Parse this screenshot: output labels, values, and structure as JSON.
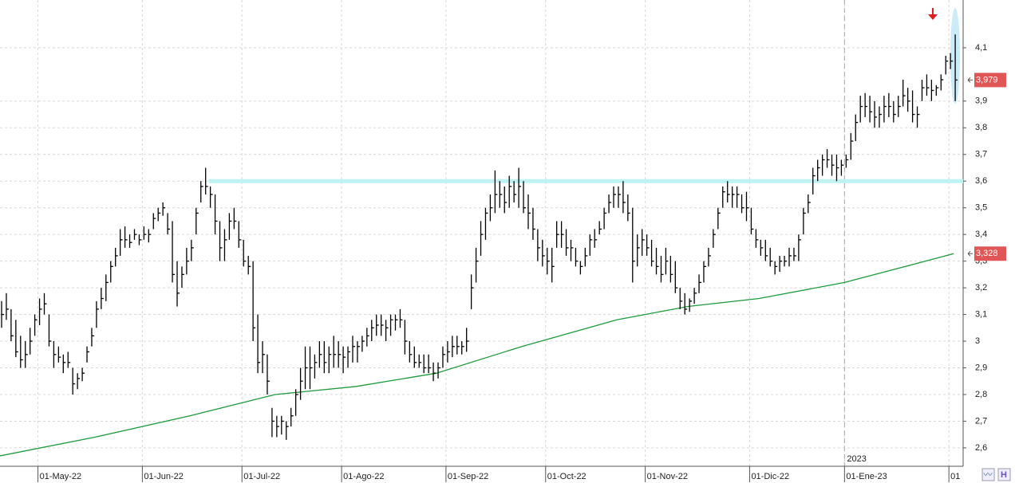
{
  "chart_data": {
    "type": "ohlc",
    "xlim": [
      0,
      203
    ],
    "ylim": [
      2.531,
      4.279
    ],
    "xticks": [
      {
        "value": 8,
        "label": "01-May-22"
      },
      {
        "value": 30,
        "label": "01-Jun-22"
      },
      {
        "value": 51,
        "label": "01-Jul-22"
      },
      {
        "value": 72,
        "label": "01-Ago-22"
      },
      {
        "value": 94,
        "label": "01-Sep-22"
      },
      {
        "value": 115,
        "label": "01-Oct-22"
      },
      {
        "value": 136,
        "label": "01-Nov-22"
      },
      {
        "value": 158,
        "label": "01-Dic-22"
      },
      {
        "value": 178,
        "label": "01-Ene-23"
      },
      {
        "value": 200,
        "label": "01"
      }
    ],
    "yticks": [
      {
        "value": 2.6,
        "label": "2,6"
      },
      {
        "value": 2.7,
        "label": "2,7"
      },
      {
        "value": 2.8,
        "label": "2,8"
      },
      {
        "value": 2.9,
        "label": "2,9"
      },
      3,
      {
        "value": 3.1,
        "label": "3,1"
      },
      {
        "value": 3.2,
        "label": "3,2"
      },
      {
        "value": 3.3,
        "label": "3,3"
      },
      {
        "value": 3.4,
        "label": "3,4"
      },
      {
        "value": 3.5,
        "label": "3,5"
      },
      {
        "value": 3.6,
        "label": "3,6"
      },
      {
        "value": 3.7,
        "label": "3,7"
      },
      {
        "value": 3.8,
        "label": "3,8"
      },
      {
        "value": 3.9,
        "label": "3,9"
      },
      {
        "value": 4.1,
        "label": "4,1"
      }
    ],
    "grid": true,
    "year_marker": {
      "x": 178,
      "label": "2023"
    },
    "bar_color": "#000000",
    "high": [
      3.15,
      3.18,
      3.12,
      3.08,
      3.02,
      3.0,
      3.05,
      3.1,
      3.16,
      3.18,
      3.1,
      3.0,
      2.98,
      2.95,
      2.96,
      2.9,
      2.88,
      2.9,
      2.98,
      3.05,
      3.15,
      3.2,
      3.25,
      3.3,
      3.35,
      3.42,
      3.43,
      3.4,
      3.42,
      3.4,
      3.43,
      3.42,
      3.48,
      3.5,
      3.52,
      3.48,
      3.45,
      3.3,
      3.28,
      3.35,
      3.38,
      3.5,
      3.6,
      3.65,
      3.58,
      3.55,
      3.45,
      3.42,
      3.48,
      3.5,
      3.45,
      3.38,
      3.32,
      3.3,
      3.1,
      3.0,
      2.95,
      2.75,
      2.72,
      2.72,
      2.7,
      2.75,
      2.82,
      2.9,
      2.98,
      2.98,
      2.95,
      3.0,
      3.0,
      2.98,
      3.02,
      3.0,
      2.98,
      2.98,
      3.02,
      3.0,
      3.02,
      3.05,
      3.08,
      3.1,
      3.1,
      3.08,
      3.1,
      3.1,
      3.12,
      3.08,
      3.0,
      2.98,
      2.95,
      2.95,
      2.95,
      2.92,
      2.92,
      2.98,
      3.0,
      3.02,
      3.02,
      3.0,
      3.05,
      3.25,
      3.35,
      3.45,
      3.5,
      3.55,
      3.64,
      3.6,
      3.58,
      3.62,
      3.6,
      3.65,
      3.6,
      3.55,
      3.5,
      3.42,
      3.38,
      3.35,
      3.35,
      3.45,
      3.45,
      3.42,
      3.38,
      3.35,
      3.3,
      3.35,
      3.4,
      3.42,
      3.45,
      3.5,
      3.55,
      3.58,
      3.58,
      3.6,
      3.55,
      3.5,
      3.4,
      3.42,
      3.4,
      3.38,
      3.35,
      3.32,
      3.35,
      3.32,
      3.3,
      3.2,
      3.18,
      3.16,
      3.2,
      3.25,
      3.3,
      3.35,
      3.42,
      3.5,
      3.58,
      3.6,
      3.58,
      3.58,
      3.55,
      3.56,
      3.5,
      3.42,
      3.38,
      3.38,
      3.35,
      3.3,
      3.32,
      3.32,
      3.35,
      3.35,
      3.4,
      3.5,
      3.55,
      3.65,
      3.68,
      3.7,
      3.72,
      3.7,
      3.7,
      3.68,
      3.7,
      3.78,
      3.85,
      3.92,
      3.93,
      3.92,
      3.9,
      3.88,
      3.92,
      3.93,
      3.9,
      3.92,
      3.98,
      3.95,
      3.94,
      3.88,
      3.98,
      4.0,
      3.98,
      3.96,
      4.0,
      4.07,
      4.08,
      4.15
    ],
    "low": [
      3.05,
      3.08,
      3.0,
      2.94,
      2.9,
      2.9,
      2.95,
      3.02,
      3.06,
      3.1,
      2.98,
      2.9,
      2.92,
      2.88,
      2.9,
      2.8,
      2.82,
      2.85,
      2.92,
      2.98,
      3.05,
      3.12,
      3.15,
      3.22,
      3.28,
      3.32,
      3.35,
      3.35,
      3.38,
      3.36,
      3.38,
      3.37,
      3.42,
      3.45,
      3.47,
      3.4,
      3.22,
      3.13,
      3.2,
      3.25,
      3.3,
      3.4,
      3.52,
      3.55,
      3.5,
      3.4,
      3.3,
      3.3,
      3.38,
      3.42,
      3.35,
      3.28,
      3.25,
      3.0,
      2.88,
      2.88,
      2.8,
      2.64,
      2.64,
      2.65,
      2.63,
      2.68,
      2.72,
      2.78,
      2.82,
      2.82,
      2.86,
      2.9,
      2.88,
      2.88,
      2.9,
      2.9,
      2.88,
      2.9,
      2.92,
      2.92,
      2.96,
      2.98,
      3.0,
      3.02,
      3.02,
      3.0,
      3.02,
      3.04,
      3.05,
      2.95,
      2.92,
      2.9,
      2.9,
      2.88,
      2.88,
      2.85,
      2.86,
      2.9,
      2.92,
      2.94,
      2.95,
      2.95,
      2.96,
      3.12,
      3.22,
      3.32,
      3.38,
      3.45,
      3.48,
      3.5,
      3.48,
      3.5,
      3.52,
      3.5,
      3.48,
      3.42,
      3.38,
      3.3,
      3.28,
      3.25,
      3.22,
      3.35,
      3.35,
      3.32,
      3.3,
      3.28,
      3.25,
      3.28,
      3.32,
      3.35,
      3.4,
      3.42,
      3.48,
      3.5,
      3.5,
      3.48,
      3.45,
      3.22,
      3.28,
      3.32,
      3.32,
      3.28,
      3.25,
      3.22,
      3.25,
      3.22,
      3.18,
      3.12,
      3.1,
      3.11,
      3.14,
      3.18,
      3.22,
      3.28,
      3.35,
      3.42,
      3.5,
      3.52,
      3.5,
      3.5,
      3.48,
      3.45,
      3.4,
      3.35,
      3.32,
      3.3,
      3.28,
      3.25,
      3.26,
      3.28,
      3.28,
      3.3,
      3.3,
      3.4,
      3.48,
      3.55,
      3.6,
      3.62,
      3.65,
      3.62,
      3.6,
      3.62,
      3.65,
      3.68,
      3.75,
      3.82,
      3.84,
      3.82,
      3.8,
      3.8,
      3.82,
      3.84,
      3.82,
      3.84,
      3.88,
      3.86,
      3.82,
      3.8,
      3.9,
      3.92,
      3.9,
      3.92,
      3.94,
      4.0,
      4.02,
      3.9
    ],
    "close": [
      3.1,
      3.12,
      3.02,
      2.96,
      2.93,
      2.95,
      3.0,
      3.08,
      3.12,
      3.14,
      3.0,
      2.95,
      2.94,
      2.92,
      2.92,
      2.84,
      2.86,
      2.88,
      2.96,
      3.02,
      3.12,
      3.16,
      3.22,
      3.28,
      3.32,
      3.38,
      3.38,
      3.37,
      3.4,
      3.38,
      3.4,
      3.4,
      3.46,
      3.48,
      3.5,
      3.42,
      3.25,
      3.18,
      3.25,
      3.3,
      3.35,
      3.48,
      3.58,
      3.58,
      3.55,
      3.45,
      3.35,
      3.38,
      3.45,
      3.45,
      3.38,
      3.3,
      3.28,
      3.05,
      2.92,
      2.95,
      2.85,
      2.7,
      2.68,
      2.7,
      2.68,
      2.72,
      2.8,
      2.85,
      2.9,
      2.9,
      2.92,
      2.95,
      2.92,
      2.95,
      2.95,
      2.95,
      2.94,
      2.96,
      2.98,
      2.98,
      3.0,
      3.02,
      3.05,
      3.06,
      3.06,
      3.05,
      3.08,
      3.08,
      3.08,
      3.0,
      2.95,
      2.92,
      2.92,
      2.9,
      2.9,
      2.88,
      2.9,
      2.95,
      2.96,
      2.98,
      2.98,
      2.98,
      3.0,
      3.2,
      3.3,
      3.4,
      3.48,
      3.5,
      3.55,
      3.55,
      3.52,
      3.58,
      3.55,
      3.58,
      3.5,
      3.48,
      3.42,
      3.35,
      3.32,
      3.3,
      3.28,
      3.4,
      3.4,
      3.35,
      3.35,
      3.3,
      3.28,
      3.32,
      3.38,
      3.38,
      3.42,
      3.48,
      3.52,
      3.55,
      3.55,
      3.52,
      3.48,
      3.3,
      3.35,
      3.38,
      3.35,
      3.3,
      3.28,
      3.25,
      3.3,
      3.25,
      3.2,
      3.15,
      3.12,
      3.15,
      3.18,
      3.22,
      3.28,
      3.32,
      3.4,
      3.48,
      3.56,
      3.55,
      3.55,
      3.55,
      3.5,
      3.5,
      3.42,
      3.38,
      3.35,
      3.32,
      3.3,
      3.28,
      3.3,
      3.3,
      3.32,
      3.32,
      3.38,
      3.48,
      3.52,
      3.62,
      3.65,
      3.68,
      3.68,
      3.66,
      3.65,
      3.66,
      3.68,
      3.75,
      3.82,
      3.88,
      3.88,
      3.86,
      3.84,
      3.85,
      3.88,
      3.88,
      3.85,
      3.88,
      3.92,
      3.9,
      3.85,
      3.85,
      3.95,
      3.95,
      3.94,
      3.95,
      3.98,
      4.05,
      4.05,
      3.979
    ],
    "close_last_label": "3,979",
    "close_label_color": "#e05555",
    "moving_average": {
      "color": "#1e9a3c",
      "x": [
        0,
        20,
        40,
        58,
        75,
        92,
        110,
        130,
        145,
        160,
        178,
        201
      ],
      "values": [
        2.57,
        2.64,
        2.72,
        2.8,
        2.83,
        2.88,
        2.98,
        3.08,
        3.13,
        3.16,
        3.22,
        3.328
      ],
      "last_label": "3,328"
    },
    "hline": {
      "value": 3.6,
      "from": 44,
      "color": "#bff2f2"
    }
  }
}
